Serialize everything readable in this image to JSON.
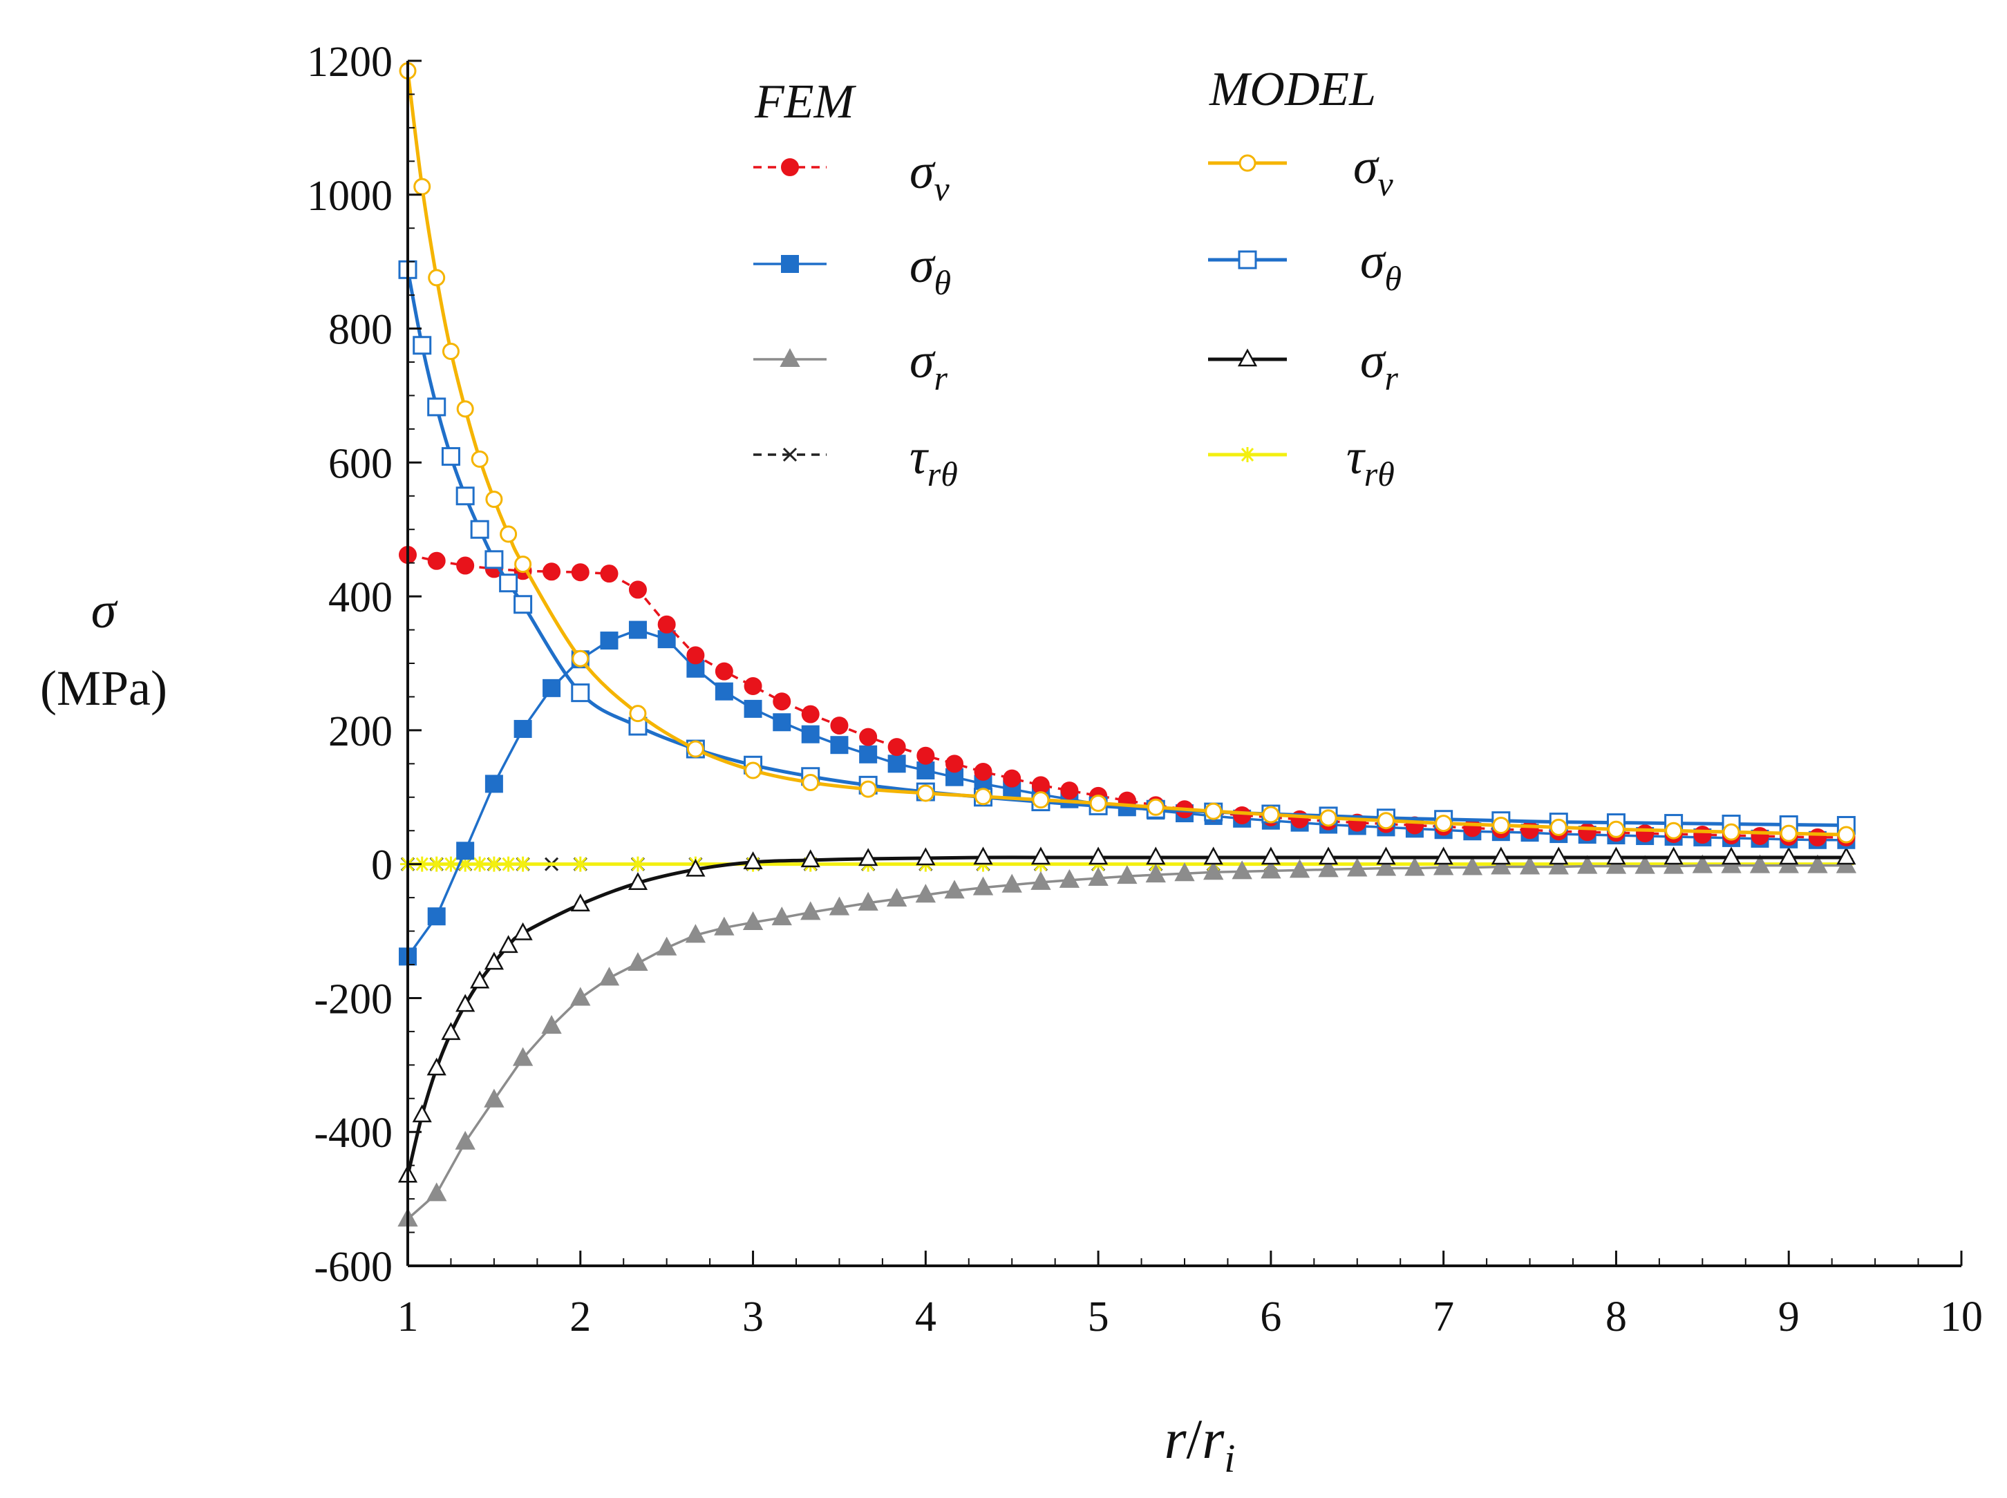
{
  "chart_data": {
    "type": "line",
    "title": "",
    "ylabel": {
      "symbol": "σ",
      "unit": "(MPa)"
    },
    "xlabel": {
      "main": "r",
      "slash": "/",
      "main2": "r",
      "sub": "i"
    },
    "xlim": [
      1,
      10
    ],
    "ylim": [
      -600,
      1200
    ],
    "xticks": [
      1,
      2,
      3,
      4,
      5,
      6,
      7,
      8,
      9,
      10
    ],
    "yticks": [
      -600,
      -400,
      -200,
      0,
      200,
      400,
      600,
      800,
      1000,
      1200
    ],
    "grid": false,
    "legend": {
      "placement": "top",
      "groups": [
        {
          "title": "FEM",
          "entries": [
            {
              "series": "fem_sv",
              "sym": "σ",
              "sub": "v"
            },
            {
              "series": "fem_st",
              "sym": "σ",
              "sub": "θ"
            },
            {
              "series": "fem_sr",
              "sym": "σ",
              "sub": "r"
            },
            {
              "series": "fem_tau",
              "sym": "τ",
              "sub": "rθ"
            }
          ]
        },
        {
          "title": "MODEL",
          "entries": [
            {
              "series": "mod_sv",
              "sym": "σ",
              "sub": "v"
            },
            {
              "series": "mod_st",
              "sym": "σ",
              "sub": "θ"
            },
            {
              "series": "mod_sr",
              "sym": "σ",
              "sub": "r"
            },
            {
              "series": "mod_tau",
              "sym": "τ",
              "sub": "rθ"
            }
          ]
        }
      ]
    },
    "series": [
      {
        "id": "fem_sv",
        "name": "FEM σv",
        "color": "#e8131b",
        "dash": "dashed",
        "marker": "circle-filled",
        "x": [
          1.0,
          1.167,
          1.333,
          1.5,
          1.667,
          1.833,
          2.0,
          2.167,
          2.333,
          2.5,
          2.667,
          2.833,
          3.0,
          3.167,
          3.333,
          3.5,
          3.667,
          3.833,
          4.0,
          4.167,
          4.333,
          4.5,
          4.667,
          4.833,
          5.0,
          5.167,
          5.333,
          5.5,
          5.667,
          5.833,
          6.0,
          6.167,
          6.333,
          6.5,
          6.667,
          6.833,
          7.0,
          7.167,
          7.333,
          7.5,
          7.667,
          7.833,
          8.0,
          8.167,
          8.333,
          8.5,
          8.667,
          8.833,
          9.0,
          9.167,
          9.333
        ],
        "y": [
          462,
          453,
          446,
          441,
          438,
          437,
          436,
          434,
          410,
          358,
          312,
          288,
          266,
          243,
          224,
          207,
          190,
          175,
          162,
          150,
          138,
          128,
          118,
          110,
          102,
          95,
          88,
          82,
          77,
          73,
          70,
          67,
          64,
          62,
          60,
          58,
          56,
          54,
          52,
          51,
          49,
          48,
          47,
          46,
          45,
          44,
          43,
          42,
          41,
          40,
          40
        ]
      },
      {
        "id": "fem_st",
        "name": "FEM σθ",
        "color": "#1f6fc9",
        "dash": "solid",
        "marker": "square-filled",
        "x": [
          1.0,
          1.167,
          1.333,
          1.5,
          1.667,
          1.833,
          2.0,
          2.167,
          2.333,
          2.5,
          2.667,
          2.833,
          3.0,
          3.167,
          3.333,
          3.5,
          3.667,
          3.833,
          4.0,
          4.167,
          4.333,
          4.5,
          4.667,
          4.833,
          5.0,
          5.167,
          5.333,
          5.5,
          5.667,
          5.833,
          6.0,
          6.167,
          6.333,
          6.5,
          6.667,
          6.833,
          7.0,
          7.167,
          7.333,
          7.5,
          7.667,
          7.833,
          8.0,
          8.167,
          8.333,
          8.5,
          8.667,
          8.833,
          9.0,
          9.167,
          9.333
        ],
        "y": [
          -138,
          -78,
          20,
          120,
          202,
          263,
          306,
          334,
          350,
          336,
          292,
          258,
          232,
          212,
          194,
          178,
          164,
          150,
          140,
          130,
          120,
          112,
          104,
          97,
          90,
          85,
          80,
          76,
          72,
          68,
          65,
          62,
          59,
          57,
          55,
          53,
          51,
          49,
          48,
          47,
          45,
          44,
          43,
          42,
          41,
          40,
          39,
          38,
          37,
          36,
          36
        ]
      },
      {
        "id": "fem_sr",
        "name": "FEM σr",
        "color": "#8c8c8c",
        "dash": "solid",
        "marker": "triangle-filled",
        "x": [
          1.0,
          1.167,
          1.333,
          1.5,
          1.667,
          1.833,
          2.0,
          2.167,
          2.333,
          2.5,
          2.667,
          2.833,
          3.0,
          3.167,
          3.333,
          3.5,
          3.667,
          3.833,
          4.0,
          4.167,
          4.333,
          4.5,
          4.667,
          4.833,
          5.0,
          5.167,
          5.333,
          5.5,
          5.667,
          5.833,
          6.0,
          6.167,
          6.333,
          6.5,
          6.667,
          6.833,
          7.0,
          7.167,
          7.333,
          7.5,
          7.667,
          7.833,
          8.0,
          8.167,
          8.333,
          8.5,
          8.667,
          8.833,
          9.0,
          9.167,
          9.333
        ],
        "y": [
          -530,
          -492,
          -415,
          -352,
          -290,
          -242,
          -200,
          -170,
          -148,
          -125,
          -106,
          -95,
          -87,
          -80,
          -72,
          -65,
          -58,
          -52,
          -46,
          -40,
          -35,
          -31,
          -27,
          -24,
          -21,
          -18,
          -16,
          -14,
          -12,
          -11,
          -10,
          -9,
          -8,
          -7,
          -6,
          -6,
          -5,
          -5,
          -4,
          -4,
          -4,
          -3,
          -3,
          -3,
          -3,
          -2,
          -2,
          -2,
          -2,
          -2,
          -2
        ]
      },
      {
        "id": "fem_tau",
        "name": "FEM τrθ",
        "color": "#222222",
        "dash": "dashed",
        "marker": "x",
        "x": [
          1.0,
          1.167,
          1.333,
          1.5,
          1.667,
          1.833,
          2.0,
          2.333,
          2.667,
          3.0,
          3.333,
          3.667,
          4.0,
          4.333,
          4.667,
          5.0,
          5.333,
          5.667,
          6.0,
          6.333,
          6.667,
          7.0,
          7.333,
          7.667,
          8.0,
          8.333,
          8.667,
          9.0,
          9.333
        ],
        "y": [
          0,
          0,
          0,
          0,
          0,
          0,
          0,
          0,
          0,
          0,
          0,
          0,
          0,
          0,
          0,
          0,
          0,
          0,
          0,
          0,
          0,
          0,
          0,
          0,
          0,
          0,
          0,
          0,
          0
        ]
      },
      {
        "id": "mod_sv",
        "name": "MODEL σv",
        "color": "#f5b400",
        "dash": "solid",
        "marker": "circle-open",
        "x": [
          1.0,
          1.083,
          1.167,
          1.25,
          1.333,
          1.417,
          1.5,
          1.583,
          1.667,
          2.0,
          2.333,
          2.667,
          3.0,
          3.333,
          3.667,
          4.0,
          4.333,
          4.667,
          5.0,
          5.333,
          5.667,
          6.0,
          6.333,
          6.667,
          7.0,
          7.333,
          7.667,
          8.0,
          8.333,
          8.667,
          9.0,
          9.333
        ],
        "y": [
          1185,
          1012,
          876,
          766,
          680,
          605,
          545,
          493,
          448,
          307,
          225,
          172,
          140,
          122,
          112,
          106,
          101,
          96,
          91,
          85,
          79,
          74,
          69,
          65,
          61,
          58,
          55,
          52,
          50,
          48,
          46,
          44
        ]
      },
      {
        "id": "mod_st",
        "name": "MODEL σθ",
        "color": "#1f6fc9",
        "dash": "solid",
        "marker": "square-open",
        "x": [
          1.0,
          1.083,
          1.167,
          1.25,
          1.333,
          1.417,
          1.5,
          1.583,
          1.667,
          2.0,
          2.333,
          2.667,
          3.0,
          3.333,
          3.667,
          4.0,
          4.333,
          4.667,
          5.0,
          5.333,
          5.667,
          6.0,
          6.333,
          6.667,
          7.0,
          7.333,
          7.667,
          8.0,
          8.333,
          8.667,
          9.0,
          9.333
        ],
        "y": [
          888,
          775,
          683,
          609,
          550,
          500,
          455,
          420,
          388,
          256,
          206,
          172,
          148,
          131,
          118,
          108,
          100,
          93,
          87,
          82,
          78,
          75,
          72,
          69,
          67,
          65,
          63,
          62,
          61,
          60,
          59,
          58
        ]
      },
      {
        "id": "mod_sr",
        "name": "MODEL σr",
        "color": "#111111",
        "dash": "solid",
        "marker": "triangle-open",
        "x": [
          1.0,
          1.083,
          1.167,
          1.25,
          1.333,
          1.417,
          1.5,
          1.583,
          1.667,
          2.0,
          2.333,
          2.667,
          3.0,
          3.333,
          3.667,
          4.0,
          4.333,
          4.667,
          5.0,
          5.333,
          5.667,
          6.0,
          6.333,
          6.667,
          7.0,
          7.333,
          7.667,
          8.0,
          8.333,
          8.667,
          9.0,
          9.333
        ],
        "y": [
          -465,
          -375,
          -305,
          -252,
          -210,
          -175,
          -147,
          -122,
          -103,
          -60,
          -28,
          -8,
          3,
          6,
          8,
          9,
          10,
          10,
          10,
          10,
          10,
          10,
          10,
          10,
          10,
          10,
          10,
          10,
          10,
          10,
          10,
          10
        ]
      },
      {
        "id": "mod_tau",
        "name": "MODEL τrθ",
        "color": "#f3ef10",
        "dash": "solid",
        "marker": "asterisk",
        "x": [
          1.0,
          1.083,
          1.167,
          1.25,
          1.333,
          1.417,
          1.5,
          1.583,
          1.667,
          2.0,
          2.333,
          2.667,
          3.0,
          3.333,
          3.667,
          4.0,
          4.333,
          4.667,
          5.0,
          5.333,
          5.667,
          6.0,
          6.333,
          6.667,
          7.0,
          7.333,
          7.667,
          8.0,
          8.333,
          8.667,
          9.0,
          9.333
        ],
        "y": [
          0,
          0,
          0,
          0,
          0,
          0,
          0,
          0,
          0,
          0,
          0,
          0,
          0,
          0,
          0,
          0,
          0,
          0,
          0,
          0,
          0,
          0,
          0,
          0,
          0,
          0,
          0,
          0,
          0,
          0,
          0,
          0
        ]
      }
    ]
  }
}
